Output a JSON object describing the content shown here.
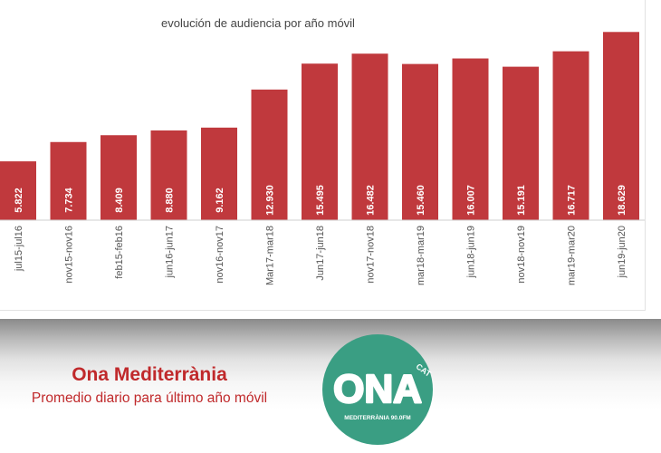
{
  "chart_data": {
    "type": "bar",
    "title": "evolución de audiencia por año móvil",
    "categories": [
      "jul15-jul16",
      "nov15-nov16",
      "feb15-feb16",
      "jun16-jun17",
      "nov16-nov17",
      "Mar17-mar18",
      "Jun17-jun18",
      "nov17-nov18",
      "mar18-mar19",
      "jun18-jun19",
      "nov18-nov19",
      "mar19-mar20",
      "jun19-jun20"
    ],
    "values": [
      5822,
      7734,
      8409,
      8880,
      9162,
      12930,
      15495,
      16482,
      15460,
      16007,
      15191,
      16717,
      18629
    ],
    "value_labels": [
      "5.822",
      "7.734",
      "8.409",
      "8.880",
      "9.162",
      "12.930",
      "15.495",
      "16.482",
      "15.460",
      "16.007",
      "15.191",
      "16.717",
      "18.629"
    ],
    "ylim": [
      0,
      20000
    ],
    "bar_color": "#c0393d",
    "grid": false
  },
  "caption": {
    "title": "Ona Mediterrània",
    "subtitle": "Promedio diario para último año móvil"
  },
  "logo": {
    "wordmark": "ONA",
    "tag": "CAT",
    "tagline": "MEDITERRÀNIA 90.0FM",
    "color": "#3a9e83"
  }
}
